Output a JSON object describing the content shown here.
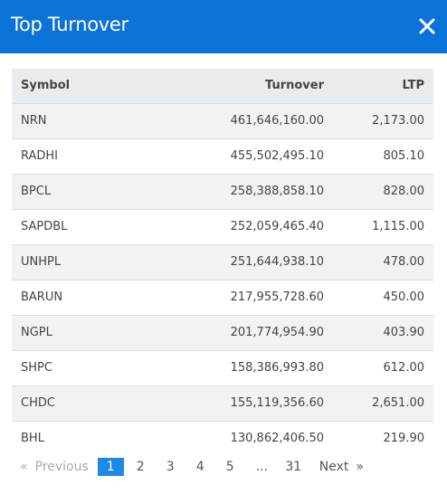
{
  "modal": {
    "title": "Top Turnover",
    "close_label": "×"
  },
  "table": {
    "headers": {
      "symbol": "Symbol",
      "turnover": "Turnover",
      "ltp": "LTP"
    },
    "rows": [
      {
        "symbol": "NRN",
        "turnover": "461,646,160.00",
        "ltp": "2,173.00"
      },
      {
        "symbol": "RADHI",
        "turnover": "455,502,495.10",
        "ltp": "805.10"
      },
      {
        "symbol": "BPCL",
        "turnover": "258,388,858.10",
        "ltp": "828.00"
      },
      {
        "symbol": "SAPDBL",
        "turnover": "252,059,465.40",
        "ltp": "1,115.00"
      },
      {
        "symbol": "UNHPL",
        "turnover": "251,644,938.10",
        "ltp": "478.00"
      },
      {
        "symbol": "BARUN",
        "turnover": "217,955,728.60",
        "ltp": "450.00"
      },
      {
        "symbol": "NGPL",
        "turnover": "201,774,954.90",
        "ltp": "403.90"
      },
      {
        "symbol": "SHPC",
        "turnover": "158,386,993.80",
        "ltp": "612.00"
      },
      {
        "symbol": "CHDC",
        "turnover": "155,119,356.60",
        "ltp": "2,651.00"
      },
      {
        "symbol": "BHL",
        "turnover": "130,862,406.50",
        "ltp": "219.90"
      }
    ]
  },
  "pagination": {
    "prev_arrow": "«",
    "prev_label": "Previous",
    "pages": [
      "1",
      "2",
      "3",
      "4",
      "5",
      "...",
      "31"
    ],
    "active_page": "1",
    "next_label": "Next",
    "next_arrow": "»"
  },
  "colors": {
    "header_bg": "#0b72d8",
    "active_page_bg": "#1e88e5"
  }
}
